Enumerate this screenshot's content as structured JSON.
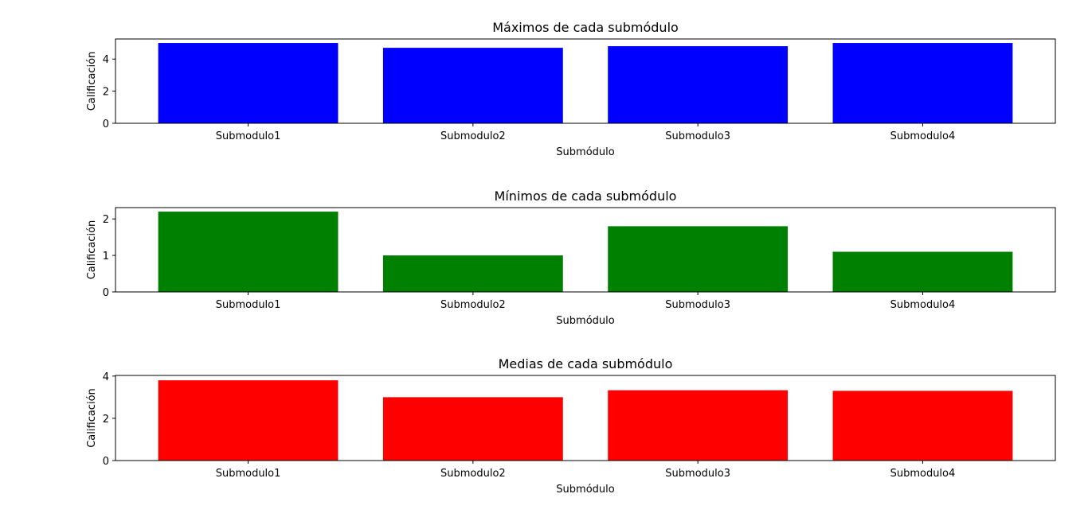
{
  "chart_data": [
    {
      "type": "bar",
      "title": "Máximos de cada submódulo",
      "xlabel": "Submódulo",
      "ylabel": "Calificación",
      "categories": [
        "Submodulo1",
        "Submodulo2",
        "Submodulo3",
        "Submodulo4"
      ],
      "values": [
        5.0,
        4.7,
        4.8,
        5.0
      ],
      "ylim": [
        0,
        5.25
      ],
      "yticks": [
        0,
        2,
        4
      ],
      "color": "#0000ff",
      "grid": false
    },
    {
      "type": "bar",
      "title": "Mínimos de cada submódulo",
      "xlabel": "Submódulo",
      "ylabel": "Calificación",
      "categories": [
        "Submodulo1",
        "Submodulo2",
        "Submodulo3",
        "Submodulo4"
      ],
      "values": [
        2.2,
        1.0,
        1.8,
        1.1
      ],
      "ylim": [
        0,
        2.31
      ],
      "yticks": [
        0,
        1,
        2
      ],
      "color": "#008000",
      "grid": false
    },
    {
      "type": "bar",
      "title": "Medias de cada submódulo",
      "xlabel": "Submódulo",
      "ylabel": "Calificación",
      "categories": [
        "Submodulo1",
        "Submodulo2",
        "Submodulo3",
        "Submodulo4"
      ],
      "values": [
        3.8,
        3.0,
        3.33,
        3.3
      ],
      "ylim": [
        0,
        4.03
      ],
      "yticks": [
        0,
        2,
        4
      ],
      "color": "#ff0000",
      "grid": false
    }
  ]
}
